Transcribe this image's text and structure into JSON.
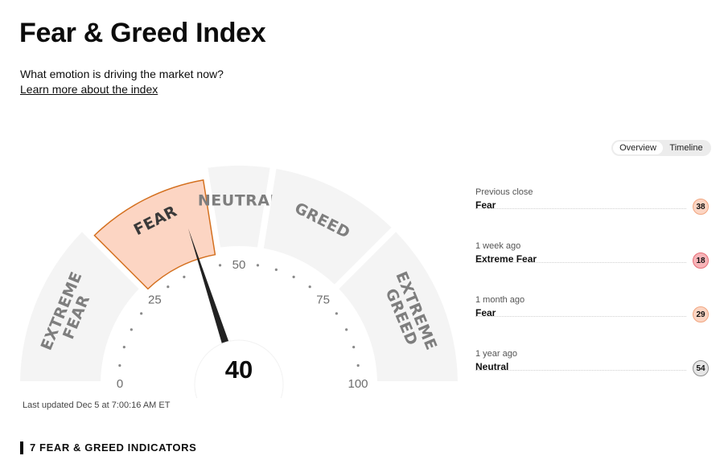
{
  "header": {
    "title": "Fear & Greed Index",
    "subtitle": "What emotion is driving the market now?",
    "learn_more": "Learn more about the index"
  },
  "view_toggle": {
    "options": [
      "Overview",
      "Timeline"
    ],
    "selected": "Overview"
  },
  "gauge": {
    "value": 40,
    "value_label": "40",
    "segments": [
      {
        "label_lines": [
          "EXTREME",
          "FEAR"
        ],
        "from": 0,
        "to": 25
      },
      {
        "label_lines": [
          "FEAR"
        ],
        "from": 25,
        "to": 45
      },
      {
        "label_lines": [
          "NEUTRAL"
        ],
        "from": 45,
        "to": 55
      },
      {
        "label_lines": [
          "GREED"
        ],
        "from": 55,
        "to": 75
      },
      {
        "label_lines": [
          "EXTREME",
          "GREED"
        ],
        "from": 75,
        "to": 100
      }
    ],
    "active_segment": 1,
    "ticks": [
      "0",
      "25",
      "50",
      "75",
      "100"
    ],
    "colors": {
      "segment": "#f4f4f4",
      "active_fill": "#fcd5c3",
      "active_stroke": "#d4701f",
      "label": "#7e7e7e",
      "needle": "#222222"
    }
  },
  "last_updated": "Last updated Dec 5 at 7:00:16 AM ET",
  "history": [
    {
      "label": "Previous close",
      "rating": "Fear",
      "value": "38",
      "badge_bg": "#fcd5c3",
      "badge_border": "#f0a57f"
    },
    {
      "label": "1 week ago",
      "rating": "Extreme Fear",
      "value": "18",
      "badge_bg": "#f7b4b8",
      "badge_border": "#e76d76"
    },
    {
      "label": "1 month ago",
      "rating": "Fear",
      "value": "29",
      "badge_bg": "#fcd5c3",
      "badge_border": "#f0a57f"
    },
    {
      "label": "1 year ago",
      "rating": "Neutral",
      "value": "54",
      "badge_bg": "#e6e6e6",
      "badge_border": "#8e8e8e"
    }
  ],
  "indicators_heading": "7 FEAR & GREED INDICATORS"
}
